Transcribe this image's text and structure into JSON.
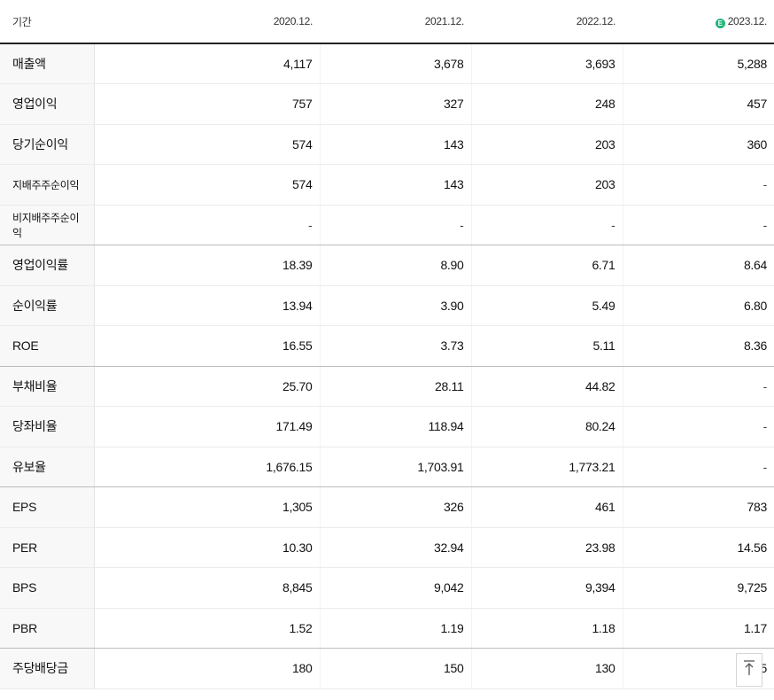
{
  "table": {
    "header": {
      "label": "기간",
      "columns": [
        {
          "label": "2020.12.",
          "estimate": false
        },
        {
          "label": "2021.12.",
          "estimate": false
        },
        {
          "label": "2022.12.",
          "estimate": false
        },
        {
          "label": "2023.12.",
          "estimate": true
        }
      ],
      "estimate_icon_text": "E",
      "estimate_icon_color": "#1fb47a"
    },
    "rows": [
      {
        "label": "매출액",
        "values": [
          "4,117",
          "3,678",
          "3,693",
          "5,288"
        ]
      },
      {
        "label": "영업이익",
        "values": [
          "757",
          "327",
          "248",
          "457"
        ]
      },
      {
        "label": "당기순이익",
        "values": [
          "574",
          "143",
          "203",
          "360"
        ]
      },
      {
        "label": "지배주주순이익",
        "values": [
          "574",
          "143",
          "203",
          "-"
        ]
      },
      {
        "label": "비지배주주순이익",
        "values": [
          "-",
          "-",
          "-",
          "-"
        ]
      },
      {
        "label": "영업이익률",
        "values": [
          "18.39",
          "8.90",
          "6.71",
          "8.64"
        ]
      },
      {
        "label": "순이익률",
        "values": [
          "13.94",
          "3.90",
          "5.49",
          "6.80"
        ]
      },
      {
        "label": "ROE",
        "values": [
          "16.55",
          "3.73",
          "5.11",
          "8.36"
        ]
      },
      {
        "label": "부채비율",
        "values": [
          "25.70",
          "28.11",
          "44.82",
          "-"
        ]
      },
      {
        "label": "당좌비율",
        "values": [
          "171.49",
          "118.94",
          "80.24",
          "-"
        ]
      },
      {
        "label": "유보율",
        "values": [
          "1,676.15",
          "1,703.91",
          "1,773.21",
          "-"
        ]
      },
      {
        "label": "EPS",
        "values": [
          "1,305",
          "326",
          "461",
          "783"
        ]
      },
      {
        "label": "PER",
        "values": [
          "10.30",
          "32.94",
          "23.98",
          "14.56"
        ]
      },
      {
        "label": "BPS",
        "values": [
          "8,845",
          "9,042",
          "9,394",
          "9,725"
        ]
      },
      {
        "label": "PBR",
        "values": [
          "1.52",
          "1.19",
          "1.18",
          "1.17"
        ]
      },
      {
        "label": "주당배당금",
        "values": [
          "180",
          "150",
          "130",
          "5"
        ]
      }
    ]
  },
  "scroll_top_button": {
    "icon": "arrow-up-icon"
  }
}
